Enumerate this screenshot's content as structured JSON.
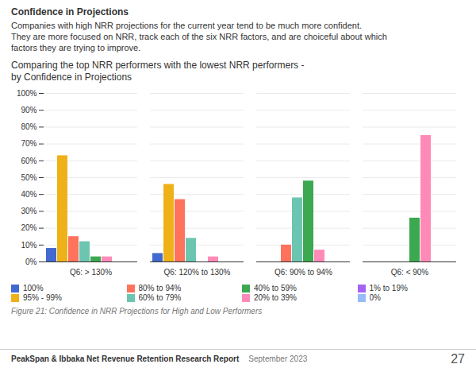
{
  "chart_data": {
    "type": "bar",
    "title": "Comparing the top NRR performers with the lowest NRR performers -\nby Confidence in Projections",
    "annotations": [
      "Confidence in Projections",
      "Companies with high NRR projections for the current year tend to be much more confident.",
      "They are more focused on NRR, track each of the six NRR factors, and are choiceful about which",
      "factors they are trying to improve.",
      "Figure 21: Confidence in NRR Projections for High and Low Performers",
      "PeakSpan & Ibbaka Net Revenue Retention Research Report",
      "September 2023",
      "27"
    ],
    "categories": [
      "Q6: > 130%",
      "Q6: 120% to 130%",
      "Q6: 90% to 94%",
      "Q6: < 90%"
    ],
    "series": [
      {
        "name": "100%",
        "values": [
          8,
          5,
          0,
          0
        ]
      },
      {
        "name": "95% - 99%",
        "values": [
          63,
          46,
          0,
          0
        ]
      },
      {
        "name": "80% to 94%",
        "values": [
          15,
          37,
          10,
          0
        ]
      },
      {
        "name": "60% to 79%",
        "values": [
          12,
          14,
          38,
          0
        ]
      },
      {
        "name": "40% to 59%",
        "values": [
          3,
          0,
          48,
          26
        ]
      },
      {
        "name": "20% to 39%",
        "values": [
          3,
          3,
          7,
          75
        ]
      },
      {
        "name": "1% to 19%",
        "values": [
          0,
          0,
          0,
          0
        ]
      },
      {
        "name": "0%",
        "values": [
          0,
          0,
          0,
          0
        ]
      }
    ],
    "ylim": [
      0,
      100
    ],
    "yticks": [
      {
        "value": 0,
        "label": "0%"
      },
      {
        "value": 10,
        "label": "10%"
      },
      {
        "value": 20,
        "label": "20%"
      },
      {
        "value": 30,
        "label": "30%"
      },
      {
        "value": 40,
        "label": "40%"
      },
      {
        "value": 50,
        "label": "50%"
      },
      {
        "value": 60,
        "label": "60%"
      },
      {
        "value": 70,
        "label": "70%"
      },
      {
        "value": 80,
        "label": "80%"
      },
      {
        "value": 90,
        "label": "90%"
      },
      {
        "value": 100,
        "label": "100%"
      }
    ],
    "grid": true,
    "legend": "bottom"
  }
}
